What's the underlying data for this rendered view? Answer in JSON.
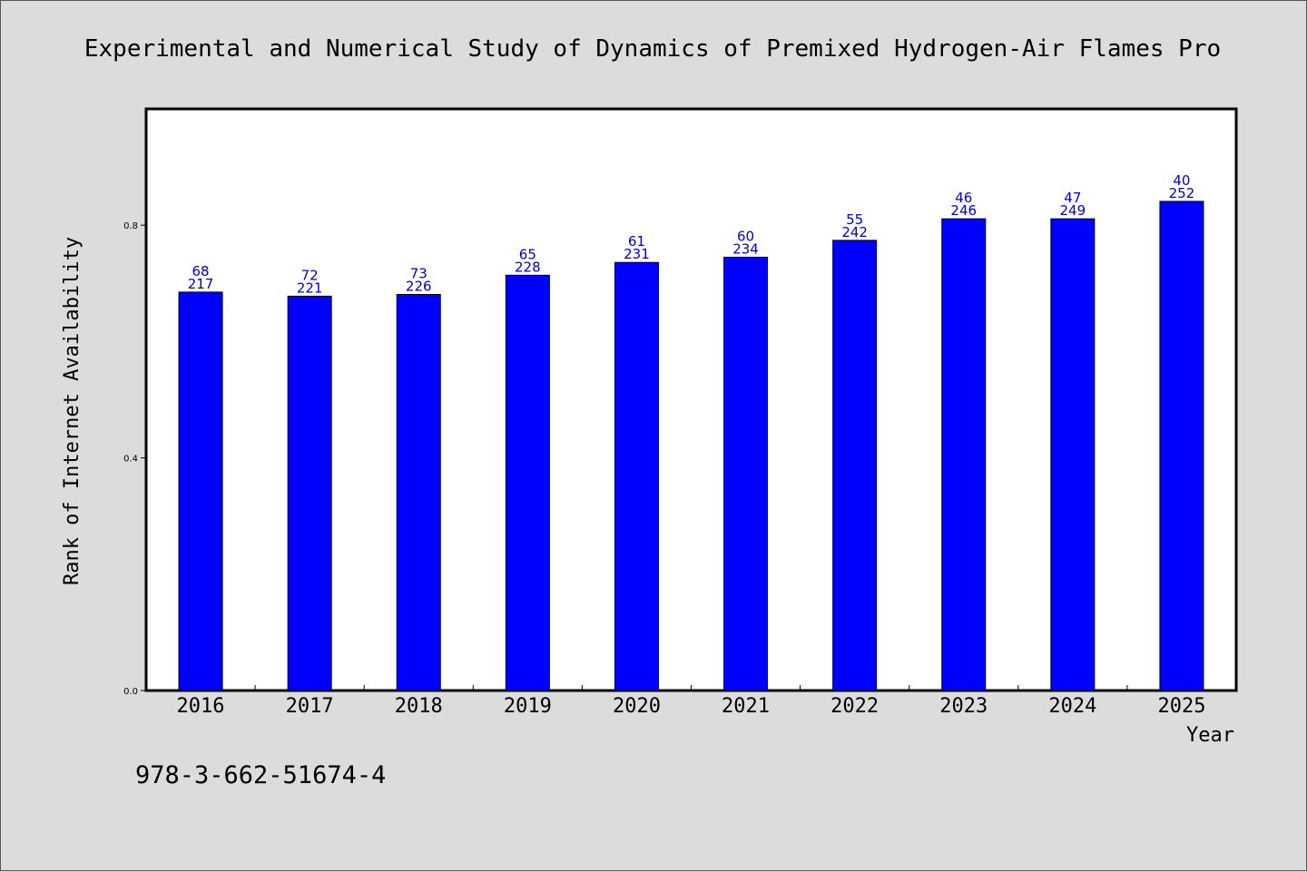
{
  "isbn": "978-3-662-51674-4",
  "colors": {
    "bar": "#0000ff",
    "bar_stroke": "#000000",
    "label": "#0000cc",
    "background": "#dcdcdc",
    "plot_bg": "#ffffff"
  },
  "chart_data": {
    "type": "bar",
    "title": "Experimental and Numerical Study of Dynamics of Premixed Hydrogen-Air Flames Pro",
    "xlabel": "Year",
    "ylabel": "Rank of Internet Availability",
    "categories": [
      "2016",
      "2017",
      "2018",
      "2019",
      "2020",
      "2021",
      "2022",
      "2023",
      "2024",
      "2025"
    ],
    "values": [
      0.685,
      0.678,
      0.681,
      0.714,
      0.736,
      0.745,
      0.774,
      0.811,
      0.811,
      0.841
    ],
    "top_labels": [
      "68",
      "72",
      "73",
      "65",
      "61",
      "60",
      "55",
      "46",
      "47",
      "40"
    ],
    "bottom_labels": [
      "217",
      "221",
      "226",
      "228",
      "231",
      "234",
      "242",
      "246",
      "249",
      "252"
    ],
    "yticks": [
      "0.0",
      "0.4",
      "0.8"
    ],
    "ylim": [
      0,
      1.0
    ],
    "grid": false,
    "legend": "none"
  }
}
